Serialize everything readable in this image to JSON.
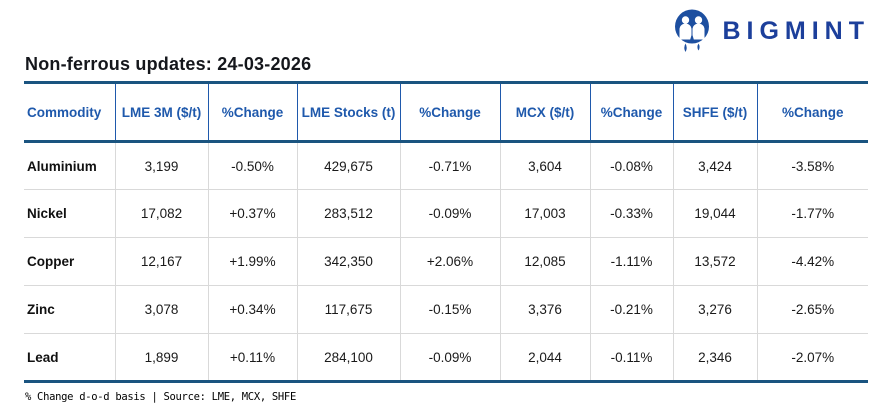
{
  "logo": {
    "brand": "BIGMINT"
  },
  "title": "Non-ferrous updates: 24-03-2026",
  "table": {
    "headers": [
      "Commodity",
      "LME 3M ($/t)",
      "%Change",
      "LME Stocks (t)",
      "%Change",
      "MCX ($/t)",
      "%Change",
      "SHFE ($/t)",
      "%Change"
    ],
    "rows": [
      {
        "commodity": "Aluminium",
        "values": [
          "3,199",
          "-0.50%",
          "429,675",
          "-0.71%",
          "3,604",
          "-0.08%",
          "3,424",
          "-3.58%"
        ]
      },
      {
        "commodity": "Nickel",
        "values": [
          "17,082",
          "+0.37%",
          "283,512",
          "-0.09%",
          "17,003",
          "-0.33%",
          "19,044",
          "-1.77%"
        ]
      },
      {
        "commodity": "Copper",
        "values": [
          "12,167",
          "+1.99%",
          "342,350",
          "+2.06%",
          "12,085",
          "-1.11%",
          "13,572",
          "-4.42%"
        ]
      },
      {
        "commodity": "Zinc",
        "values": [
          "3,078",
          "+0.34%",
          "117,675",
          "-0.15%",
          "3,376",
          "-0.21%",
          "3,276",
          "-2.65%"
        ]
      },
      {
        "commodity": "Lead",
        "values": [
          "1,899",
          "+0.11%",
          "284,100",
          "-0.09%",
          "2,044",
          "-0.11%",
          "2,346",
          "-2.07%"
        ]
      }
    ]
  },
  "footer": "% Change d-o-d basis | Source: LME, MCX, SHFE",
  "colors": {
    "header_blue": "#1f59ac",
    "thick_line": "#1a5480",
    "logo_circle": "#1d4fa0",
    "brand_text": "#1c3f9b",
    "up_green": "#0aa56e",
    "down_red": "#e8132b"
  }
}
